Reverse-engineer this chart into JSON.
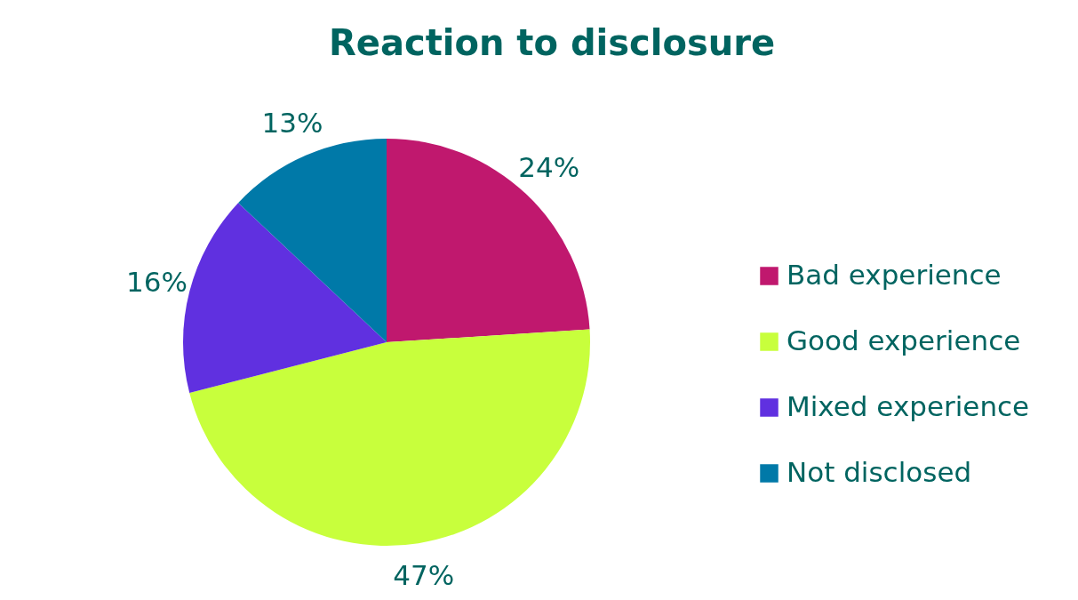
{
  "chart_data": {
    "type": "pie",
    "title": "Reaction to disclosure",
    "categories": [
      "Bad experience",
      "Good experience",
      "Mixed experience",
      "Not disclosed"
    ],
    "values": [
      24,
      47,
      16,
      13
    ],
    "value_labels": [
      "24%",
      "47%",
      "16%",
      "13%"
    ],
    "colors": [
      "#c0186e",
      "#c8ff3c",
      "#6030e0",
      "#0079a8"
    ],
    "legend": "right"
  }
}
